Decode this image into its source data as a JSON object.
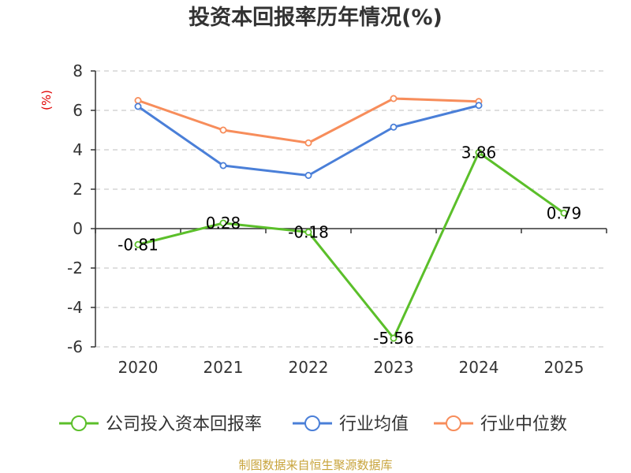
{
  "chart_data": {
    "type": "line",
    "title": "投资本回报率历年情况(%)",
    "ylabel": "(%)",
    "xlabel": "",
    "categories": [
      "2020",
      "2021",
      "2022",
      "2023",
      "2024",
      "2025"
    ],
    "y_ticks": [
      "8",
      "6",
      "4",
      "2",
      "0",
      "-2",
      "-4",
      "-6"
    ],
    "ylim": [
      -6,
      8
    ],
    "grid": "horizontal dashed",
    "legend_position": "bottom",
    "series": [
      {
        "name": "公司投入资本回报率",
        "color": "#5bbf2a",
        "values": [
          -0.81,
          0.28,
          -0.18,
          -5.56,
          3.86,
          0.79
        ],
        "labels": [
          "-0.81",
          "0.28",
          "-0.18",
          "-5.56",
          "3.86",
          "0.79"
        ]
      },
      {
        "name": "行业均值",
        "color": "#4a7fd8",
        "values": [
          6.2,
          3.2,
          2.7,
          5.15,
          6.25,
          null
        ]
      },
      {
        "name": "行业中位数",
        "color": "#f78d5b",
        "values": [
          6.5,
          5.0,
          4.35,
          6.6,
          6.45,
          null
        ]
      }
    ]
  },
  "source_note": "制图数据来自恒生聚源数据库"
}
